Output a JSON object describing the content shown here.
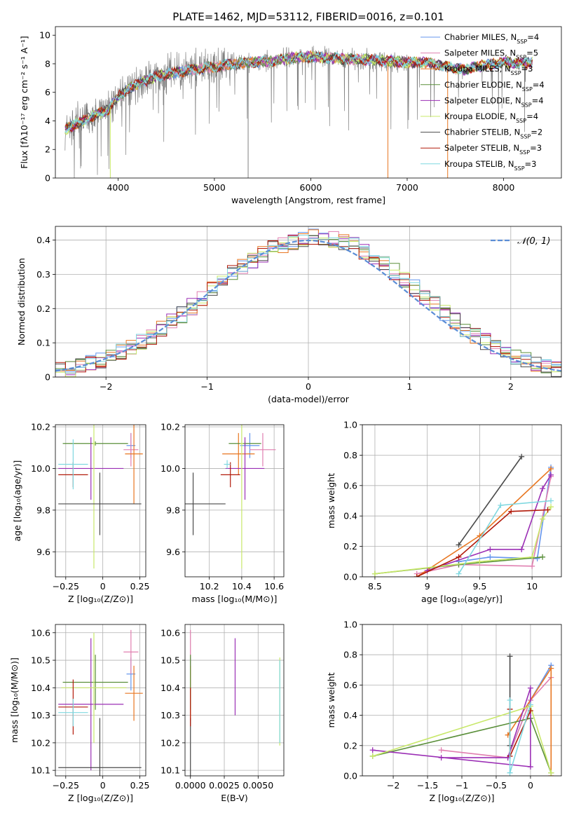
{
  "figure": {
    "title": "PLATE=1462, MJD=53112, FIBERID=0016, z=0.101"
  },
  "colors": {
    "chabrier_miles": "#6495ED",
    "salpeter_miles": "#e07fb0",
    "kroupa_miles": "#e87722",
    "chabrier_elodie": "#5a8f3a",
    "salpeter_elodie": "#9b2fb5",
    "kroupa_elodie": "#c8e86a",
    "chabrier_stelib": "#4a4a4a",
    "salpeter_stelib": "#b21a0a",
    "kroupa_stelib": "#7fd8e0",
    "data": "#808080",
    "gaussian": "#5b8dd6"
  },
  "chart_data": [
    {
      "id": "spectrum",
      "type": "line",
      "title": "PLATE=1462, MJD=53112, FIBERID=0016, z=0.101",
      "xlabel": "wavelength [Angstrom, rest frame]",
      "ylabel": "Flux [fλ10⁻¹⁷ erg cm⁻² s⁻¹ A⁻¹]",
      "xlim": [
        3350,
        8600
      ],
      "ylim": [
        0,
        10.6
      ],
      "xticks": [
        4000,
        5000,
        6000,
        7000,
        8000
      ],
      "yticks": [
        0,
        2,
        4,
        6,
        8,
        10
      ],
      "legend_position": "top-right",
      "legend": [
        {
          "key": "chabrier_miles",
          "label": "Chabrier MILES, N",
          "sub": "SSP",
          "suffix": "=4"
        },
        {
          "key": "salpeter_miles",
          "label": "Salpeter MILES, N",
          "sub": "SSP",
          "suffix": "=5"
        },
        {
          "key": "kroupa_miles",
          "label": "Kroupa MILES, N",
          "sub": "SSP",
          "suffix": "=3"
        },
        {
          "key": "chabrier_elodie",
          "label": "Chabrier ELODIE, N",
          "sub": "SSP",
          "suffix": "=4"
        },
        {
          "key": "salpeter_elodie",
          "label": "Salpeter ELODIE, N",
          "sub": "SSP",
          "suffix": "=4"
        },
        {
          "key": "kroupa_elodie",
          "label": "Kroupa ELODIE, N",
          "sub": "SSP",
          "suffix": "=4"
        },
        {
          "key": "chabrier_stelib",
          "label": "Chabrier STELIB, N",
          "sub": "SSP",
          "suffix": "=2"
        },
        {
          "key": "salpeter_stelib",
          "label": "Salpeter STELIB, N",
          "sub": "SSP",
          "suffix": "=3"
        },
        {
          "key": "kroupa_stelib",
          "label": "Kroupa STELIB, N",
          "sub": "SSP",
          "suffix": "=3"
        }
      ],
      "continuum_x": [
        3450,
        3600,
        3700,
        3800,
        3900,
        4000,
        4200,
        4400,
        4600,
        4800,
        5000,
        5200,
        5400,
        5600,
        5800,
        6000,
        6200,
        6400,
        6600,
        6800,
        7000,
        7200,
        7400,
        7600,
        7800,
        8000,
        8200,
        8300
      ],
      "continuum_y": [
        3.4,
        3.9,
        4.2,
        4.5,
        4.8,
        5.7,
        6.6,
        7.1,
        7.4,
        7.6,
        7.8,
        8.0,
        8.1,
        8.2,
        8.4,
        8.5,
        8.4,
        8.3,
        8.3,
        8.2,
        8.1,
        8.1,
        7.8,
        7.6,
        7.9,
        8.1,
        8.0,
        8.1
      ]
    },
    {
      "id": "residuals",
      "type": "line",
      "xlabel": "(data-model)/error",
      "ylabel": "Normed distribution",
      "xlim": [
        -2.5,
        2.5
      ],
      "ylim": [
        0,
        0.44
      ],
      "xticks": [
        -2,
        -1,
        0,
        1,
        2
      ],
      "yticks": [
        0.0,
        0.1,
        0.2,
        0.3,
        0.4
      ],
      "grid": true,
      "legend_position": "top-right",
      "gaussian_label": "𝒩(0, 1)",
      "gaussian_mean": 0,
      "gaussian_sigma": 1
    },
    {
      "id": "age-vs-Z",
      "type": "scatter",
      "xlabel": "Z [log₁₀(Z/Z⊙)]",
      "ylabel": "age  [log₁₀(age/yr)]",
      "xlim": [
        -0.32,
        0.29
      ],
      "ylim": [
        9.48,
        10.21
      ],
      "xticks": [
        -0.25,
        0.0,
        0.25
      ],
      "yticks": [
        9.6,
        9.8,
        10.0,
        10.2
      ],
      "grid": true,
      "points": [
        {
          "key": "chabrier_miles",
          "x": 0.19,
          "y": 10.11,
          "xerr": 0.03,
          "yerr": 0.06
        },
        {
          "key": "salpeter_miles",
          "x": 0.19,
          "y": 10.09,
          "xerr": 0.05,
          "yerr": 0.08
        },
        {
          "key": "kroupa_miles",
          "x": 0.21,
          "y": 10.07,
          "xerr": 0.06,
          "yerr": 0.24
        },
        {
          "key": "chabrier_elodie",
          "x": -0.05,
          "y": 10.12,
          "xerr": 0.22,
          "yerr": 0.01
        },
        {
          "key": "salpeter_elodie",
          "x": -0.08,
          "y": 10.0,
          "xerr": 0.22,
          "yerr": 0.15
        },
        {
          "key": "kroupa_elodie",
          "x": -0.06,
          "y": 10.12,
          "xerr": 0.01,
          "yerr": 0.6
        },
        {
          "key": "chabrier_stelib",
          "x": -0.02,
          "y": 9.83,
          "xerr": 0.28,
          "yerr": 0.15
        },
        {
          "key": "salpeter_stelib",
          "x": -0.2,
          "y": 9.97,
          "xerr": 0.1,
          "yerr": 0.06
        },
        {
          "key": "kroupa_stelib",
          "x": -0.2,
          "y": 10.02,
          "xerr": 0.1,
          "yerr": 0.12
        }
      ]
    },
    {
      "id": "age-vs-mass",
      "type": "scatter",
      "xlabel": "mass [log₁₀(M/M⊙)]",
      "ylabel": "",
      "xlim": [
        10.05,
        10.66
      ],
      "ylim": [
        9.48,
        10.21
      ],
      "xticks": [
        10.2,
        10.4,
        10.6
      ],
      "yticks": [
        9.6,
        9.8,
        10.0,
        10.2
      ],
      "grid": true,
      "points": [
        {
          "key": "chabrier_miles",
          "x": 10.45,
          "y": 10.11,
          "xerr": 0.06,
          "yerr": 0.06
        },
        {
          "key": "salpeter_miles",
          "x": 10.53,
          "y": 10.09,
          "xerr": 0.08,
          "yerr": 0.08
        },
        {
          "key": "kroupa_miles",
          "x": 10.38,
          "y": 10.07,
          "xerr": 0.1,
          "yerr": 0.1
        },
        {
          "key": "chabrier_elodie",
          "x": 10.42,
          "y": 10.12,
          "xerr": 0.1,
          "yerr": 0.01
        },
        {
          "key": "salpeter_elodie",
          "x": 10.42,
          "y": 10.0,
          "xerr": 0.12,
          "yerr": 0.15
        },
        {
          "key": "kroupa_elodie",
          "x": 10.4,
          "y": 10.12,
          "xerr": 0.01,
          "yerr": 0.6
        },
        {
          "key": "chabrier_stelib",
          "x": 10.1,
          "y": 9.83,
          "xerr": 0.2,
          "yerr": 0.15
        },
        {
          "key": "salpeter_stelib",
          "x": 10.33,
          "y": 9.97,
          "xerr": 0.06,
          "yerr": 0.06
        },
        {
          "key": "kroupa_stelib",
          "x": 10.31,
          "y": 10.02,
          "xerr": 0.02,
          "yerr": 0.02
        }
      ]
    },
    {
      "id": "mass-weight-vs-age",
      "type": "line",
      "xlabel": "age  [log₁₀(age/yr)]",
      "ylabel": "mass weight",
      "xlim": [
        8.38,
        10.28
      ],
      "ylim": [
        0,
        1.0
      ],
      "xticks": [
        8.5,
        9.0,
        9.5,
        10.0
      ],
      "yticks": [
        0.0,
        0.2,
        0.4,
        0.6,
        0.8,
        1.0
      ],
      "grid": true,
      "series": [
        {
          "key": "chabrier_miles",
          "x": [
            9.3,
            9.6,
            10.05,
            10.18
          ],
          "y": [
            0.1,
            0.13,
            0.12,
            0.72
          ]
        },
        {
          "key": "salpeter_miles",
          "x": [
            8.9,
            9.3,
            10.0,
            10.18
          ],
          "y": [
            0.02,
            0.08,
            0.07,
            0.66
          ]
        },
        {
          "key": "kroupa_miles",
          "x": [
            8.9,
            9.5,
            10.18
          ],
          "y": [
            0.0,
            0.27,
            0.71
          ]
        },
        {
          "key": "chabrier_elodie",
          "x": [
            8.5,
            9.3,
            10.1
          ],
          "y": [
            0.02,
            0.08,
            0.13
          ]
        },
        {
          "key": "salpeter_elodie",
          "x": [
            9.0,
            9.6,
            9.9,
            10.1,
            10.18
          ],
          "y": [
            0.04,
            0.18,
            0.18,
            0.58,
            0.67
          ]
        },
        {
          "key": "kroupa_elodie",
          "x": [
            8.5,
            9.5,
            10.0,
            10.1,
            10.18
          ],
          "y": [
            0.02,
            0.1,
            0.13,
            0.38,
            0.46
          ]
        },
        {
          "key": "chabrier_stelib",
          "x": [
            9.3,
            9.9
          ],
          "y": [
            0.21,
            0.79
          ]
        },
        {
          "key": "salpeter_stelib",
          "x": [
            8.9,
            9.3,
            9.8,
            10.15
          ],
          "y": [
            0.0,
            0.13,
            0.43,
            0.44
          ]
        },
        {
          "key": "kroupa_stelib",
          "x": [
            9.3,
            9.7,
            10.18
          ],
          "y": [
            0.02,
            0.47,
            0.5
          ]
        }
      ]
    },
    {
      "id": "mass-vs-Z",
      "type": "scatter",
      "xlabel": "Z [log₁₀(Z/Z⊙)]",
      "ylabel": "mass [log₁₀(M/M⊙)]",
      "xlim": [
        -0.32,
        0.29
      ],
      "ylim": [
        10.08,
        10.63
      ],
      "xticks": [
        -0.25,
        0.0,
        0.25
      ],
      "yticks": [
        10.1,
        10.2,
        10.3,
        10.4,
        10.5,
        10.6
      ],
      "grid": true,
      "points": [
        {
          "key": "chabrier_miles",
          "x": 0.19,
          "y": 10.45,
          "xerr": 0.03,
          "yerr": 0.06
        },
        {
          "key": "salpeter_miles",
          "x": 0.19,
          "y": 10.53,
          "xerr": 0.05,
          "yerr": 0.08
        },
        {
          "key": "kroupa_miles",
          "x": 0.21,
          "y": 10.38,
          "xerr": 0.06,
          "yerr": 0.1
        },
        {
          "key": "chabrier_elodie",
          "x": -0.05,
          "y": 10.42,
          "xerr": 0.22,
          "yerr": 0.1
        },
        {
          "key": "salpeter_elodie",
          "x": -0.08,
          "y": 10.34,
          "xerr": 0.22,
          "yerr": 0.24
        },
        {
          "key": "kroupa_elodie",
          "x": -0.06,
          "y": 10.4,
          "xerr": 0.22,
          "yerr": 0.2
        },
        {
          "key": "chabrier_stelib",
          "x": -0.02,
          "y": 10.11,
          "xerr": 0.28,
          "yerr": 0.18
        },
        {
          "key": "salpeter_stelib",
          "x": -0.2,
          "y": 10.33,
          "xerr": 0.1,
          "yerr": 0.1
        },
        {
          "key": "kroupa_stelib",
          "x": -0.2,
          "y": 10.31,
          "xerr": 0.1,
          "yerr": 0.05
        }
      ]
    },
    {
      "id": "mass-vs-ebv",
      "type": "scatter",
      "xlabel": "E(B-V)",
      "ylabel": "",
      "xlim": [
        -0.0004,
        0.0069
      ],
      "ylim": [
        10.08,
        10.63
      ],
      "xticks": [
        0.0,
        0.0025,
        0.005
      ],
      "xticklabels": [
        "0.0000",
        "0.0025",
        "0.0050"
      ],
      "yticks": [
        10.1,
        10.2,
        10.3,
        10.4,
        10.5,
        10.6
      ],
      "grid": true,
      "points": [
        {
          "key": "chabrier_miles",
          "x": 0.0,
          "y": 10.45,
          "xerr": 0.0,
          "yerr": 0.06
        },
        {
          "key": "salpeter_miles",
          "x": 0.0,
          "y": 10.5,
          "xerr": 0.0,
          "yerr": 0.11
        },
        {
          "key": "kroupa_miles",
          "x": 0.0,
          "y": 10.38,
          "xerr": 0.0,
          "yerr": 0.1
        },
        {
          "key": "chabrier_elodie",
          "x": 0.0,
          "y": 10.42,
          "xerr": 0.0,
          "yerr": 0.1
        },
        {
          "key": "salpeter_elodie",
          "x": 0.0033,
          "y": 10.44,
          "xerr": 0.0,
          "yerr": 0.14
        },
        {
          "key": "kroupa_elodie",
          "x": 0.0066,
          "y": 10.35,
          "xerr": 0.0,
          "yerr": 0.16
        },
        {
          "key": "chabrier_stelib",
          "x": 0.0,
          "y": 10.11,
          "xerr": 0.0,
          "yerr": 0.18
        },
        {
          "key": "salpeter_stelib",
          "x": 0.0,
          "y": 10.33,
          "xerr": 0.0,
          "yerr": 0.07
        },
        {
          "key": "kroupa_stelib",
          "x": 0.0066,
          "y": 10.35,
          "xerr": 0.0,
          "yerr": 0.15
        }
      ]
    },
    {
      "id": "mass-weight-vs-Z",
      "type": "line",
      "xlabel": "Z [log₁₀(Z/Z⊙)]",
      "ylabel": "mass weight",
      "xlim": [
        -2.45,
        0.45
      ],
      "ylim": [
        0,
        1.0
      ],
      "xticks": [
        -2.0,
        -1.5,
        -1.0,
        -0.5,
        0.0
      ],
      "yticks": [
        0.0,
        0.2,
        0.4,
        0.6,
        0.8,
        1.0
      ],
      "grid": true,
      "series": [
        {
          "key": "chabrier_miles",
          "x": [
            -0.33,
            0.0,
            0.3
          ],
          "y": [
            0.12,
            0.5,
            0.73
          ]
        },
        {
          "key": "salpeter_miles",
          "x": [
            -1.3,
            -0.33,
            0.0,
            0.3
          ],
          "y": [
            0.17,
            0.12,
            0.5,
            0.65
          ]
        },
        {
          "key": "kroupa_miles",
          "x": [
            -0.33,
            0.3,
            0.3
          ],
          "y": [
            0.27,
            0.71,
            0.0
          ]
        },
        {
          "key": "chabrier_elodie",
          "x": [
            -2.3,
            0.0,
            0.3
          ],
          "y": [
            0.13,
            0.38,
            0.02
          ]
        },
        {
          "key": "salpeter_elodie",
          "x": [
            -2.3,
            0.0,
            0.0,
            -0.33,
            -1.3
          ],
          "y": [
            0.17,
            0.06,
            0.58,
            0.12,
            0.12
          ]
        },
        {
          "key": "kroupa_elodie",
          "x": [
            -2.3,
            0.0,
            0.3
          ],
          "y": [
            0.13,
            0.46,
            0.02
          ]
        },
        {
          "key": "chabrier_stelib",
          "x": [
            -0.3,
            -0.3
          ],
          "y": [
            0.79,
            0.2
          ]
        },
        {
          "key": "salpeter_stelib",
          "x": [
            -0.3,
            -0.3,
            0.0
          ],
          "y": [
            0.44,
            0.13,
            0.43
          ]
        },
        {
          "key": "kroupa_stelib",
          "x": [
            -0.3,
            -0.3,
            0.0
          ],
          "y": [
            0.5,
            0.02,
            0.47
          ]
        }
      ]
    }
  ]
}
